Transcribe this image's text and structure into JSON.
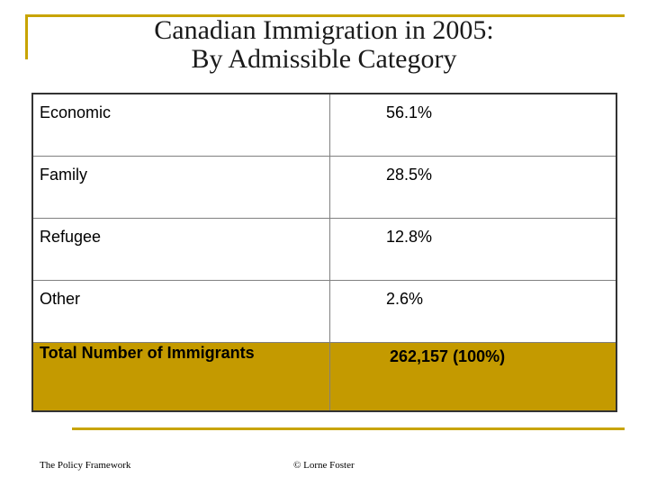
{
  "slide": {
    "title_line1": "Canadian Immigration in 2005:",
    "title_line2": "By Admissible Category"
  },
  "colors": {
    "frame_accent": "#c8a400",
    "total_row_fill": "#c49a00"
  },
  "chart_data": {
    "type": "table",
    "title": "Canadian Immigration in 2005: By Admissible Category",
    "rows": [
      {
        "category": "Economic",
        "value": "56.1%"
      },
      {
        "category": "Family",
        "value": "28.5%"
      },
      {
        "category": "Refugee",
        "value": "12.8%"
      },
      {
        "category": "Other",
        "value": "2.6%"
      }
    ],
    "total": {
      "category": "Total Number of Immigrants",
      "value": "262,157 (100%)"
    },
    "percentages": [
      56.1,
      28.5,
      12.8,
      2.6
    ],
    "total_immigrants": 262157
  },
  "footer": {
    "left": "The Policy Framework",
    "center": "© Lorne Foster"
  }
}
